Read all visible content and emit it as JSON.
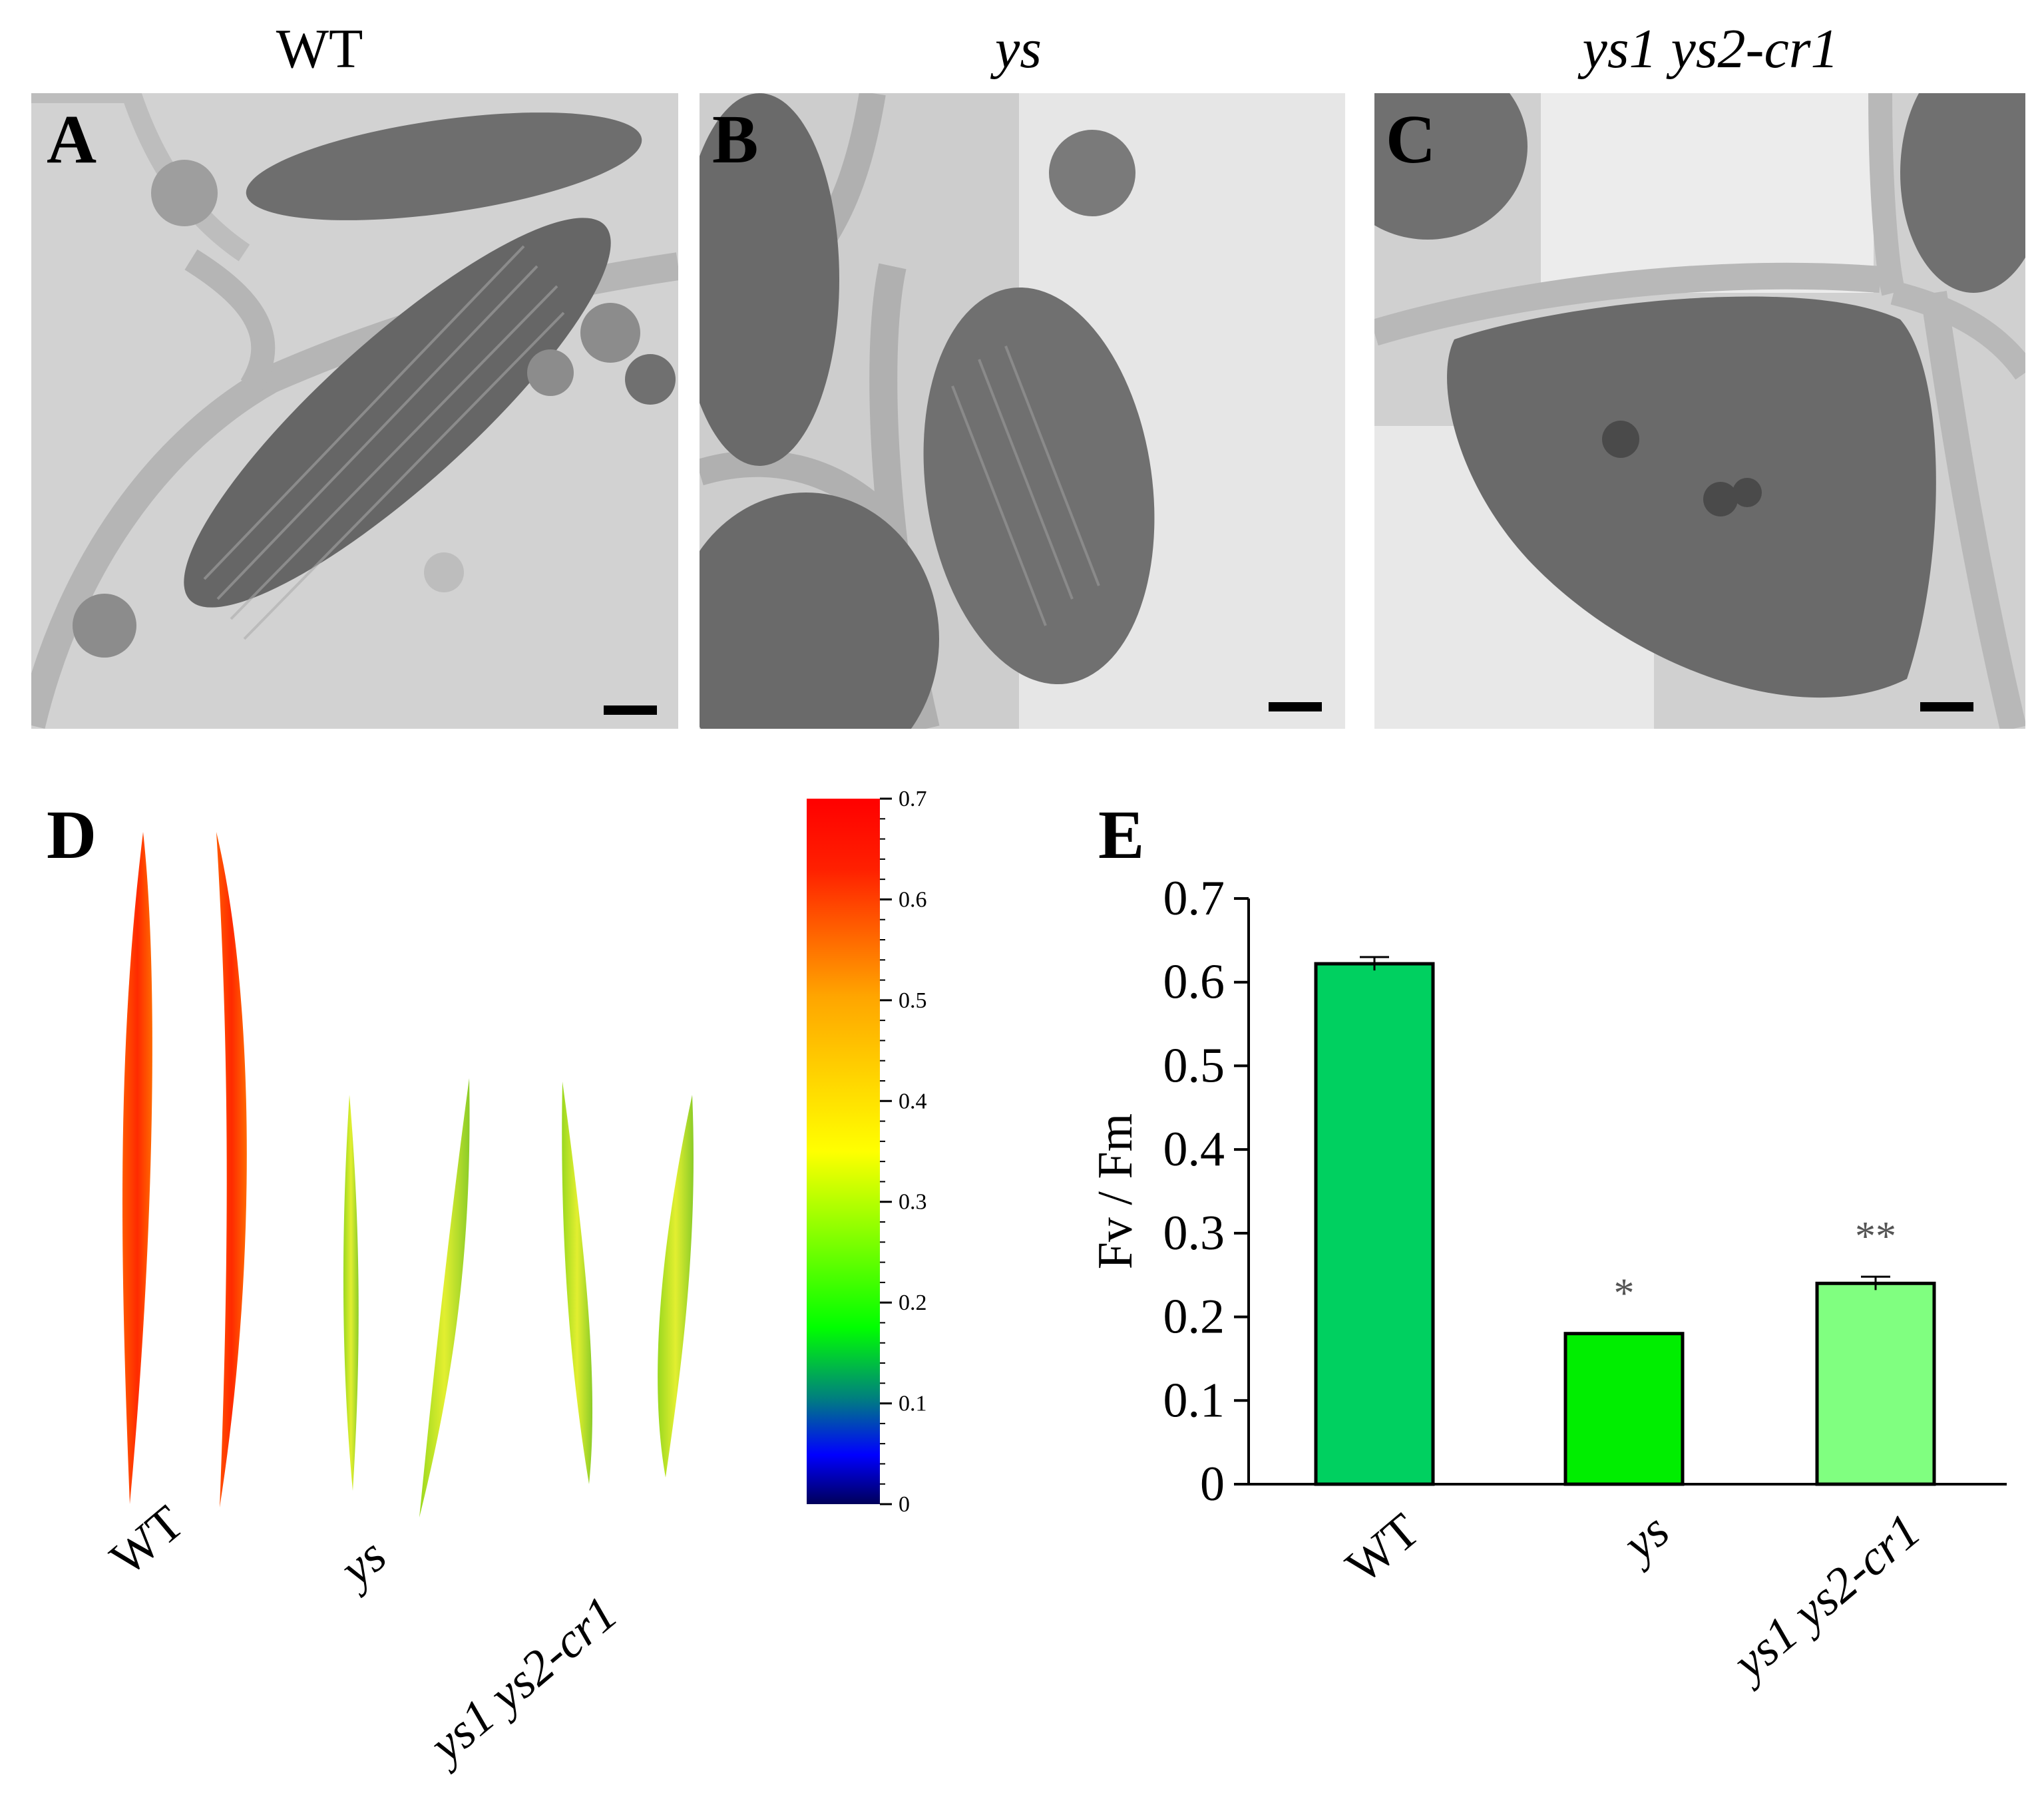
{
  "panels": {
    "A": {
      "letter": "A",
      "genotype": "WT"
    },
    "B": {
      "letter": "B",
      "genotype": "ys"
    },
    "C": {
      "letter": "C",
      "genotype": "ys1 ys2-cr1"
    },
    "D": {
      "letter": "D"
    },
    "E": {
      "letter": "E"
    }
  },
  "panel_d": {
    "sample_labels": [
      "WT",
      "ys",
      "ys1 ys2-cr1"
    ],
    "colorbar": {
      "min": 0,
      "max": 0.7,
      "tick_labels": [
        "0.7",
        "0.6",
        "0.5",
        "0.4",
        "0.3",
        "0.2",
        "0.1",
        "0"
      ],
      "tick_values": [
        0.7,
        0.6,
        0.5,
        0.4,
        0.3,
        0.2,
        0.1,
        0
      ],
      "colormap": [
        "#00005a",
        "#0000ff",
        "#00ff00",
        "#ffff00",
        "#ffa500",
        "#ff0000"
      ]
    },
    "leaf_mean_values": [
      0.62,
      0.62,
      0.25,
      0.3,
      0.28,
      0.25
    ],
    "leaf_colors": {
      "WT": "#ff3300",
      "ys": "#c8e640",
      "ys1 ys2-cr1": "#a8d830"
    }
  },
  "chart_data": {
    "type": "bar",
    "categories": [
      "WT",
      "ys",
      "ys1 ys2-cr1"
    ],
    "values": [
      0.622,
      0.18,
      0.24
    ],
    "errors": [
      0.008,
      0.0,
      0.008
    ],
    "significance": [
      "",
      "*",
      "**"
    ],
    "ylabel": "Fv / Fm",
    "xlabel": "",
    "ylim": [
      0,
      0.7
    ],
    "yticks": [
      "0",
      "0.1",
      "0.2",
      "0.3",
      "0.4",
      "0.5",
      "0.6",
      "0.7"
    ],
    "ytick_values": [
      0,
      0.1,
      0.2,
      0.3,
      0.4,
      0.5,
      0.6,
      0.7
    ],
    "colors": [
      "#00d060",
      "#00ee00",
      "#80ff80"
    ],
    "grid": false
  }
}
